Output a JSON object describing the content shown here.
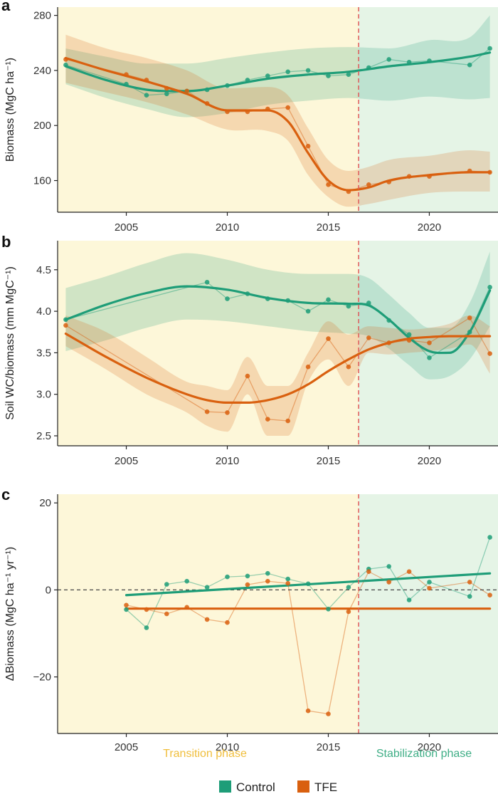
{
  "colors": {
    "control": "#1e9d78",
    "tfe": "#d9600f",
    "transition_bg": "#fdf7d9",
    "stabilization_bg": "#e5f4e6",
    "divider": "#e05a5a",
    "transition_text": "#f0be3c",
    "stabilization_text": "#3fae86"
  },
  "phase_boundary_year": 2016.5,
  "phases": {
    "transition": "Transition phase",
    "stabilization": "Stabilization phase"
  },
  "legend": {
    "control": "Control",
    "tfe": "TFE"
  },
  "chart_data": [
    {
      "panel": "a",
      "type": "line",
      "ylabel": "Biomass (MgC ha⁻¹)",
      "xlim": [
        2001.6,
        2023.4
      ],
      "ylim": [
        137,
        286
      ],
      "xticks": [
        2005,
        2010,
        2015,
        2020
      ],
      "yticks": [
        160,
        200,
        240,
        280
      ],
      "series": [
        {
          "name": "Control",
          "x": [
            2002,
            2005,
            2006,
            2007,
            2008,
            2009,
            2010,
            2011,
            2012,
            2013,
            2014,
            2015,
            2016,
            2017,
            2018,
            2019,
            2020,
            2022,
            2023
          ],
          "y": [
            244,
            230,
            222,
            223,
            225,
            226,
            229,
            233,
            236,
            239,
            240,
            236,
            237,
            242,
            248,
            246,
            247,
            244,
            256
          ],
          "fit_x": [
            2002,
            2004,
            2006,
            2008,
            2010,
            2012,
            2014,
            2016,
            2018,
            2020,
            2022,
            2023
          ],
          "fit_y": [
            243,
            233,
            226,
            225,
            229,
            234,
            237,
            239,
            243,
            246,
            250,
            253
          ],
          "band_upper": [
            256,
            250,
            245,
            245,
            249,
            253,
            256,
            257,
            256,
            262,
            264,
            280
          ],
          "band_lower": [
            230,
            220,
            212,
            206,
            209,
            215,
            218,
            220,
            218,
            221,
            219,
            220
          ]
        },
        {
          "name": "TFE",
          "x": [
            2002,
            2005,
            2006,
            2007,
            2008,
            2009,
            2010,
            2011,
            2012,
            2013,
            2014,
            2015,
            2016,
            2017,
            2018,
            2019,
            2020,
            2022,
            2023
          ],
          "y": [
            248,
            237,
            233,
            227,
            225,
            216,
            210,
            210,
            212,
            213,
            185,
            157,
            152,
            157,
            159,
            163,
            163,
            167,
            166
          ],
          "fit_x": [
            2002,
            2004,
            2006,
            2008,
            2010,
            2012,
            2013,
            2014,
            2015,
            2016,
            2017,
            2018,
            2020,
            2022,
            2023
          ],
          "fit_y": [
            249,
            240,
            232,
            223,
            211,
            211,
            203,
            180,
            160,
            153,
            155,
            160,
            164,
            166,
            166
          ],
          "band_upper": [
            266,
            256,
            249,
            240,
            227,
            228,
            222,
            198,
            175,
            167,
            170,
            175,
            178,
            182,
            181
          ],
          "band_lower": [
            231,
            224,
            217,
            208,
            197,
            196,
            189,
            164,
            148,
            141,
            143,
            146,
            151,
            152,
            152
          ]
        }
      ]
    },
    {
      "panel": "b",
      "type": "line",
      "ylabel": "Soil WC/biomass (mm MgC⁻¹)",
      "xlim": [
        2001.6,
        2023.4
      ],
      "ylim": [
        2.38,
        4.85
      ],
      "xticks": [
        2005,
        2010,
        2015,
        2020
      ],
      "yticks": [
        2.5,
        3.0,
        3.5,
        4.0,
        4.5
      ],
      "series": [
        {
          "name": "Control",
          "x": [
            2002,
            2009,
            2010,
            2011,
            2012,
            2013,
            2014,
            2015,
            2016,
            2017,
            2018,
            2019,
            2020,
            2022,
            2023
          ],
          "y": [
            3.9,
            4.35,
            4.15,
            4.21,
            4.15,
            4.13,
            4.0,
            4.14,
            4.06,
            4.1,
            3.89,
            3.72,
            3.44,
            3.75,
            4.29
          ],
          "fit_x": [
            2002,
            2004,
            2006,
            2008,
            2010,
            2012,
            2014,
            2016,
            2017,
            2018,
            2019,
            2020,
            2021,
            2022,
            2023
          ],
          "fit_y": [
            3.9,
            4.08,
            4.22,
            4.3,
            4.26,
            4.16,
            4.1,
            4.09,
            4.07,
            3.9,
            3.68,
            3.52,
            3.5,
            3.75,
            4.25
          ],
          "band_upper": [
            4.28,
            4.42,
            4.58,
            4.7,
            4.62,
            4.5,
            4.45,
            4.45,
            4.4,
            4.2,
            3.98,
            3.8,
            3.8,
            4.1,
            4.72
          ],
          "band_lower": [
            3.52,
            3.65,
            3.8,
            3.9,
            3.88,
            3.82,
            3.76,
            3.73,
            3.7,
            3.55,
            3.35,
            3.18,
            3.22,
            3.42,
            3.82
          ]
        },
        {
          "name": "TFE",
          "x": [
            2002,
            2009,
            2010,
            2011,
            2012,
            2013,
            2014,
            2015,
            2016,
            2017,
            2018,
            2019,
            2020,
            2022,
            2023
          ],
          "y": [
            3.83,
            2.79,
            2.78,
            3.22,
            2.7,
            2.68,
            3.33,
            3.67,
            3.33,
            3.68,
            3.62,
            3.65,
            3.62,
            3.92,
            3.49
          ],
          "fit_x": [
            2002,
            2004,
            2006,
            2008,
            2009,
            2010,
            2011,
            2012,
            2013,
            2014,
            2015,
            2016,
            2017,
            2018,
            2019,
            2020,
            2021,
            2022,
            2023
          ],
          "fit_y": [
            3.73,
            3.45,
            3.2,
            3.0,
            2.93,
            2.9,
            2.9,
            2.93,
            3.0,
            3.12,
            3.28,
            3.42,
            3.54,
            3.62,
            3.67,
            3.69,
            3.7,
            3.7,
            3.7
          ],
          "band_upper": [
            3.95,
            3.75,
            3.45,
            3.15,
            3.1,
            3.05,
            3.45,
            3.1,
            3.1,
            3.5,
            3.88,
            3.72,
            3.82,
            3.8,
            3.78,
            3.8,
            3.85,
            3.95,
            3.82
          ],
          "band_lower": [
            3.58,
            3.3,
            3.0,
            2.78,
            2.62,
            2.55,
            3.0,
            2.5,
            2.5,
            3.15,
            3.42,
            3.1,
            3.5,
            3.48,
            3.5,
            3.52,
            3.55,
            3.6,
            3.25
          ]
        }
      ]
    },
    {
      "panel": "c",
      "type": "line",
      "ylabel": "ΔBiomass (MgC ha⁻¹ yr⁻¹)",
      "xlim": [
        2001.6,
        2023.4
      ],
      "ylim": [
        -33,
        22
      ],
      "xticks": [
        2005,
        2010,
        2015,
        2020
      ],
      "yticks": [
        -20,
        0,
        20
      ],
      "zero_line": true,
      "series": [
        {
          "name": "Control",
          "x": [
            2005,
            2006,
            2007,
            2008,
            2009,
            2010,
            2011,
            2012,
            2013,
            2014,
            2015,
            2016,
            2017,
            2018,
            2019,
            2020,
            2022,
            2023
          ],
          "y": [
            -4.5,
            -8.7,
            1.3,
            2.0,
            0.6,
            3.0,
            3.2,
            3.8,
            2.5,
            1.4,
            -4.4,
            0.6,
            4.8,
            5.4,
            -2.3,
            1.8,
            -1.5,
            12.1
          ],
          "trend": [
            -1.2,
            3.8
          ]
        },
        {
          "name": "TFE",
          "x": [
            2005,
            2006,
            2007,
            2008,
            2009,
            2010,
            2011,
            2012,
            2013,
            2014,
            2015,
            2016,
            2017,
            2018,
            2019,
            2020,
            2022,
            2023
          ],
          "y": [
            -3.5,
            -4.5,
            -5.5,
            -4.0,
            -6.8,
            -7.5,
            1.2,
            2.0,
            1.5,
            -27.8,
            -28.5,
            -5.0,
            4.2,
            1.8,
            4.2,
            0.4,
            1.8,
            -1.2
          ],
          "trend": [
            -4.3,
            -4.3
          ]
        }
      ]
    }
  ]
}
